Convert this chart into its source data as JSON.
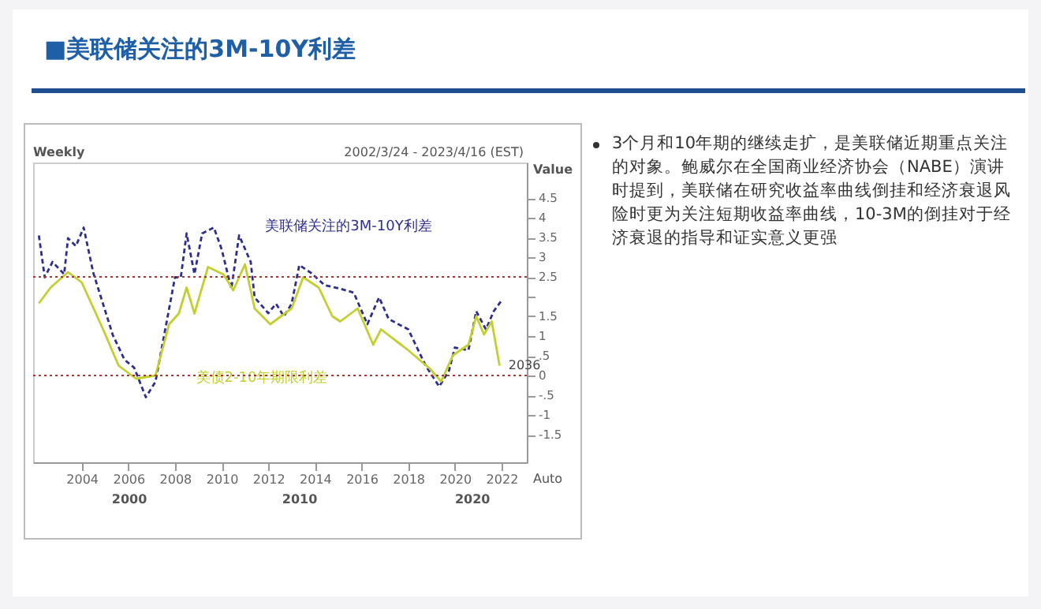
{
  "chart_data": {
    "type": "line",
    "title": "■美联储关注的3M-10Y利差",
    "ylabel": "Value",
    "legend": false,
    "grid": false,
    "xlim": [
      "2001-12",
      "2023-02"
    ],
    "xticks": [
      "2004",
      "2006",
      "2008",
      "2010",
      "2012",
      "2014",
      "2016",
      "2018",
      "2020",
      "2022"
    ],
    "ylim": [
      -2.2,
      5.4
    ],
    "yticks": [
      4.5,
      4,
      3.5,
      3,
      2.5,
      {
        "value": 2,
        "label": null
      },
      1.5,
      1,
      {
        "value": 0.5,
        "label": ".5"
      },
      0,
      {
        "value": -0.5,
        "label": "-.5"
      },
      -1,
      -1.5
    ],
    "series": [
      {
        "name": "美联储关注的3M-10Y利差",
        "color": "#2e2f8a",
        "line_style": "dashed",
        "x": [
          "2002-03",
          "2002-06",
          "2002-10",
          "2003-04",
          "2003-06",
          "2003-10",
          "2004-02",
          "2004-07",
          "2005-05",
          "2005-11",
          "2006-04",
          "2006-10",
          "2007-03",
          "2007-07",
          "2008-01",
          "2008-04",
          "2008-07",
          "2008-11",
          "2009-03",
          "2009-09",
          "2010-01",
          "2010-06",
          "2010-10",
          "2011-04",
          "2011-06",
          "2012-01",
          "2012-05",
          "2012-09",
          "2013-01",
          "2013-05",
          "2013-11",
          "2014-06",
          "2015-02",
          "2015-09",
          "2016-04",
          "2016-10",
          "2017-03",
          "2018-01",
          "2018-10",
          "2019-05",
          "2019-10",
          "2020-01",
          "2020-08",
          "2020-12",
          "2021-05",
          "2021-09",
          "2022-01"
        ],
        "values": [
          3.55,
          2.49,
          2.88,
          2.57,
          3.48,
          3.28,
          3.75,
          2.6,
          1.03,
          0.4,
          0.2,
          -0.55,
          -0.16,
          0.9,
          2.49,
          2.49,
          3.6,
          2.57,
          3.6,
          3.75,
          3.2,
          2.2,
          3.55,
          2.88,
          1.98,
          1.58,
          1.82,
          1.5,
          1.82,
          2.8,
          2.6,
          2.29,
          2.2,
          2.1,
          1.3,
          1.98,
          1.43,
          1.17,
          0.25,
          -0.28,
          0.12,
          0.71,
          0.64,
          1.63,
          1.17,
          1.63,
          1.9
        ]
      },
      {
        "name": "美债2-10年期限利差",
        "color": "#c3cf2e",
        "line_style": "solid",
        "x": [
          "2002-03",
          "2002-09",
          "2003-06",
          "2004-01",
          "2004-12",
          "2005-08",
          "2006-05",
          "2007-03",
          "2007-10",
          "2008-03",
          "2008-07",
          "2008-11",
          "2009-06",
          "2010-02",
          "2010-07",
          "2011-01",
          "2011-06",
          "2012-02",
          "2013-01",
          "2013-07",
          "2014-03",
          "2014-10",
          "2015-02",
          "2015-11",
          "2016-07",
          "2016-11",
          "2018-01",
          "2018-12",
          "2019-06",
          "2019-12",
          "2020-08",
          "2020-12",
          "2021-04",
          "2021-08",
          "2021-12"
        ],
        "values": [
          1.83,
          2.23,
          2.62,
          2.36,
          1.17,
          0.25,
          -0.08,
          0,
          1.3,
          1.57,
          2.23,
          1.57,
          2.75,
          2.56,
          2.16,
          2.82,
          1.7,
          1.3,
          1.7,
          2.49,
          2.23,
          1.5,
          1.37,
          1.7,
          0.78,
          1.17,
          0.64,
          0.18,
          -0.15,
          0.51,
          0.78,
          1.5,
          1.04,
          1.37,
          0.25
        ]
      }
    ],
    "ref_lines": [
      {
        "axis": "y",
        "value": 2.5,
        "color": "#a33a3a",
        "line_style": "dotted"
      },
      {
        "axis": "y",
        "value": 0,
        "color": "#a33a3a",
        "line_style": "dotted"
      }
    ],
    "annotations": [
      "Weekly",
      "2002/3/24 - 2023/4/16 (EST)",
      "Auto",
      "2000",
      "2010",
      "2020",
      {
        "text": "2036",
        "x": "2022-03",
        "y": 0.25
      },
      "3个月和10年期的继续走扩，是美联储近期重点关注的对象。鲍威尔在全国商业经济协会（NABE）演讲时提到，美联储在研究收益率曲线倒挂和经济衰退风险时更为关注短期收益率曲线，10-3M的倒挂对于经济衰退的指导和证实意义更强"
    ]
  }
}
